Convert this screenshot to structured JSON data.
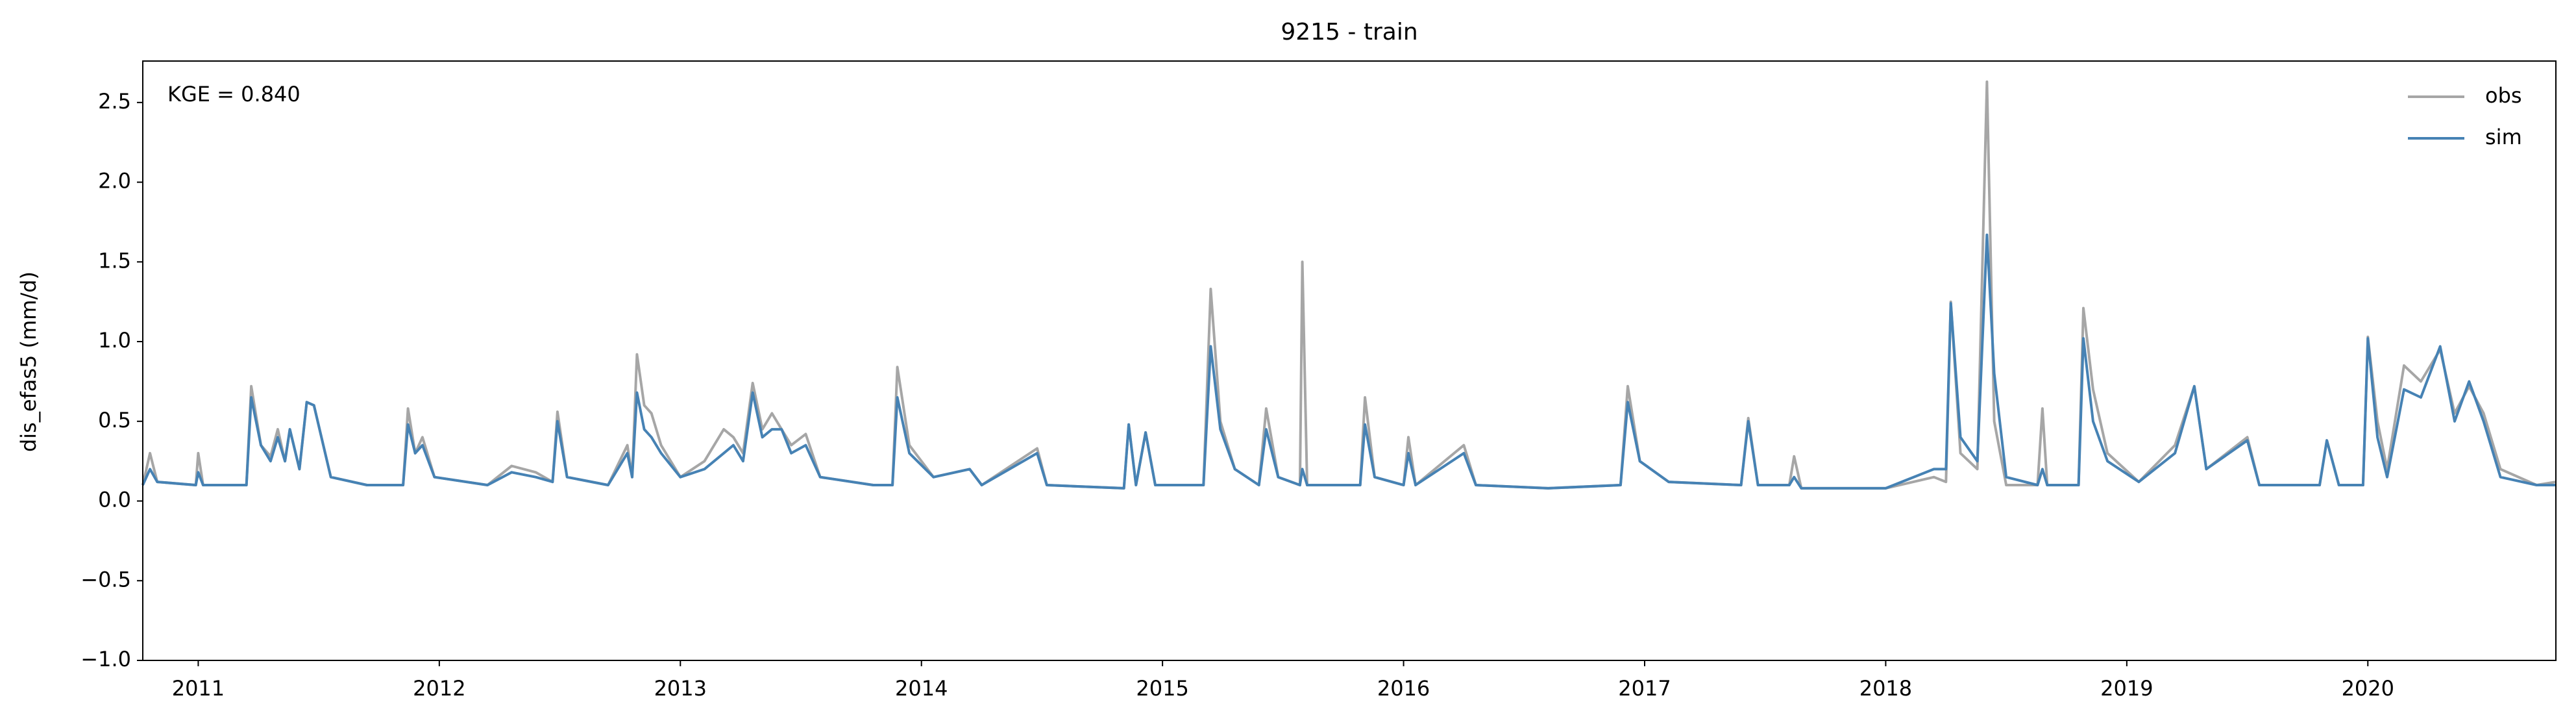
{
  "chart_data": {
    "type": "line",
    "title": "9215 - train",
    "ylabel": "dis_efas5 (mm/d)",
    "annotation": "KGE = 0.840",
    "legend": "upper right",
    "x": [
      2010.77,
      2010.8,
      2010.83,
      2010.99,
      2011.0,
      2011.02,
      2011.2,
      2011.22,
      2011.26,
      2011.3,
      2011.33,
      2011.36,
      2011.38,
      2011.42,
      2011.45,
      2011.48,
      2011.55,
      2011.7,
      2011.85,
      2011.87,
      2011.9,
      2011.93,
      2011.98,
      2012.2,
      2012.3,
      2012.4,
      2012.47,
      2012.49,
      2012.53,
      2012.7,
      2012.78,
      2012.8,
      2012.82,
      2012.85,
      2012.88,
      2012.92,
      2013.0,
      2013.1,
      2013.18,
      2013.22,
      2013.26,
      2013.3,
      2013.34,
      2013.38,
      2013.42,
      2013.46,
      2013.52,
      2013.58,
      2013.8,
      2013.88,
      2013.9,
      2013.95,
      2014.05,
      2014.2,
      2014.25,
      2014.48,
      2014.52,
      2014.84,
      2014.86,
      2014.89,
      2014.93,
      2014.97,
      2015.17,
      2015.2,
      2015.24,
      2015.3,
      2015.4,
      2015.43,
      2015.48,
      2015.57,
      2015.58,
      2015.6,
      2015.82,
      2015.84,
      2015.88,
      2016.0,
      2016.02,
      2016.05,
      2016.25,
      2016.3,
      2016.6,
      2016.9,
      2016.93,
      2016.98,
      2017.1,
      2017.4,
      2017.43,
      2017.47,
      2017.6,
      2017.62,
      2017.65,
      2018.0,
      2018.2,
      2018.25,
      2018.27,
      2018.31,
      2018.38,
      2018.42,
      2018.45,
      2018.5,
      2018.63,
      2018.65,
      2018.67,
      2018.8,
      2018.82,
      2018.86,
      2018.92,
      2019.05,
      2019.2,
      2019.28,
      2019.33,
      2019.5,
      2019.55,
      2019.8,
      2019.83,
      2019.88,
      2019.98,
      2020.0,
      2020.04,
      2020.08,
      2020.15,
      2020.22,
      2020.3,
      2020.36,
      2020.42,
      2020.48,
      2020.55,
      2020.7,
      2020.78
    ],
    "series": [
      {
        "name": "obs",
        "color": "#a6a6a6",
        "values": [
          0.1,
          0.3,
          0.12,
          0.1,
          0.3,
          0.1,
          0.1,
          0.72,
          0.35,
          0.28,
          0.45,
          0.25,
          0.45,
          0.2,
          0.62,
          0.6,
          0.15,
          0.1,
          0.1,
          0.58,
          0.3,
          0.4,
          0.15,
          0.1,
          0.22,
          0.18,
          0.12,
          0.56,
          0.15,
          0.1,
          0.35,
          0.15,
          0.92,
          0.6,
          0.55,
          0.35,
          0.15,
          0.25,
          0.45,
          0.4,
          0.3,
          0.74,
          0.45,
          0.55,
          0.45,
          0.35,
          0.42,
          0.15,
          0.1,
          0.1,
          0.84,
          0.35,
          0.15,
          0.2,
          0.1,
          0.33,
          0.1,
          0.08,
          0.48,
          0.1,
          0.43,
          0.1,
          0.1,
          1.33,
          0.5,
          0.2,
          0.1,
          0.58,
          0.15,
          0.1,
          1.5,
          0.1,
          0.1,
          0.65,
          0.15,
          0.1,
          0.4,
          0.1,
          0.35,
          0.1,
          0.08,
          0.1,
          0.72,
          0.25,
          0.12,
          0.1,
          0.52,
          0.1,
          0.1,
          0.28,
          0.08,
          0.08,
          0.15,
          0.12,
          1.25,
          0.3,
          0.2,
          2.63,
          0.5,
          0.1,
          0.1,
          0.58,
          0.1,
          0.1,
          1.21,
          0.7,
          0.3,
          0.12,
          0.35,
          0.72,
          0.2,
          0.4,
          0.1,
          0.1,
          0.38,
          0.1,
          0.1,
          1.03,
          0.5,
          0.2,
          0.85,
          0.75,
          0.95,
          0.55,
          0.72,
          0.55,
          0.2,
          0.1,
          0.12
        ]
      },
      {
        "name": "sim",
        "color": "#4682b4",
        "values": [
          0.1,
          0.2,
          0.12,
          0.1,
          0.18,
          0.1,
          0.1,
          0.65,
          0.35,
          0.25,
          0.4,
          0.25,
          0.45,
          0.2,
          0.62,
          0.6,
          0.15,
          0.1,
          0.1,
          0.48,
          0.3,
          0.35,
          0.15,
          0.1,
          0.18,
          0.15,
          0.12,
          0.5,
          0.15,
          0.1,
          0.3,
          0.15,
          0.68,
          0.45,
          0.4,
          0.3,
          0.15,
          0.2,
          0.3,
          0.35,
          0.25,
          0.68,
          0.4,
          0.45,
          0.45,
          0.3,
          0.35,
          0.15,
          0.1,
          0.1,
          0.65,
          0.3,
          0.15,
          0.2,
          0.1,
          0.3,
          0.1,
          0.08,
          0.48,
          0.1,
          0.43,
          0.1,
          0.1,
          0.97,
          0.45,
          0.2,
          0.1,
          0.45,
          0.15,
          0.1,
          0.2,
          0.1,
          0.1,
          0.48,
          0.15,
          0.1,
          0.3,
          0.1,
          0.3,
          0.1,
          0.08,
          0.1,
          0.62,
          0.25,
          0.12,
          0.1,
          0.5,
          0.1,
          0.1,
          0.15,
          0.08,
          0.08,
          0.2,
          0.2,
          1.24,
          0.4,
          0.25,
          1.67,
          0.8,
          0.15,
          0.1,
          0.2,
          0.1,
          0.1,
          1.02,
          0.5,
          0.25,
          0.12,
          0.3,
          0.72,
          0.2,
          0.38,
          0.1,
          0.1,
          0.38,
          0.1,
          0.1,
          1.02,
          0.4,
          0.15,
          0.7,
          0.65,
          0.97,
          0.5,
          0.75,
          0.5,
          0.15,
          0.1,
          0.1
        ]
      }
    ],
    "xlim": [
      2010.77,
      2020.78
    ],
    "xticks": [
      2011,
      2012,
      2013,
      2014,
      2015,
      2016,
      2017,
      2018,
      2019,
      2020
    ],
    "ylim": [
      -1.0,
      2.76
    ],
    "yticks": [
      {
        "value": -1.0,
        "label": "−1.0"
      },
      {
        "value": -0.5,
        "label": "−0.5"
      },
      {
        "value": 0.0,
        "label": "0.0"
      },
      0.5,
      {
        "value": 1.0,
        "label": "1.0"
      },
      1.5,
      {
        "value": 2.0,
        "label": "2.0"
      },
      2.5
    ]
  }
}
